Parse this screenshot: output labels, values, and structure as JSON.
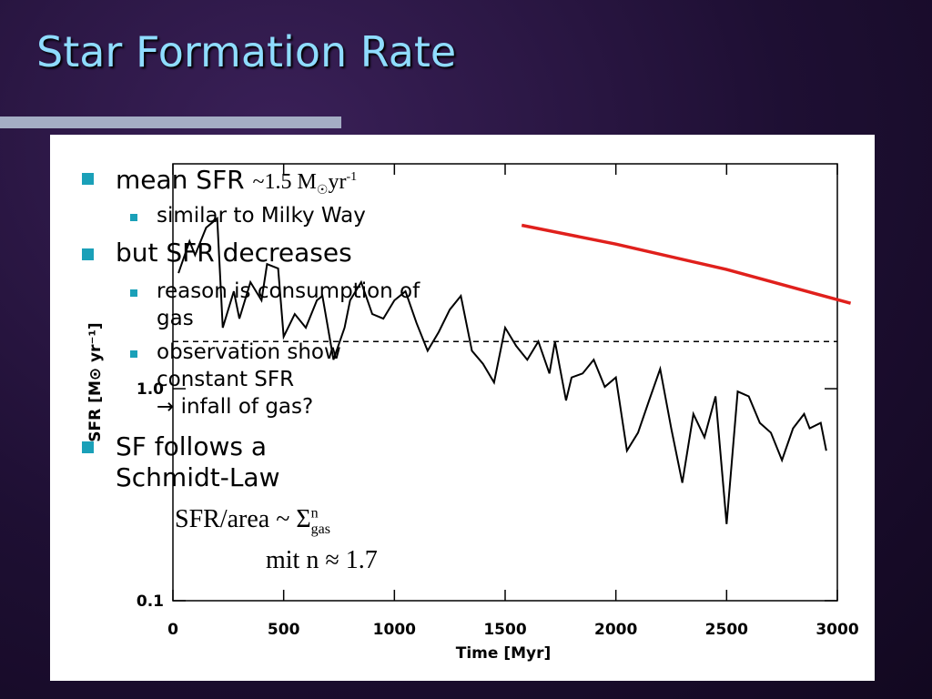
{
  "slide": {
    "title": "Star Formation Rate",
    "bullets": [
      {
        "parts": [
          "mean SFR",
          "~1.5 M",
          "☉",
          "yr",
          "-1"
        ]
      },
      {
        "text": "similar to Milky Way",
        "level": 2
      },
      {
        "text": "but SFR decreases",
        "level": 1
      },
      {
        "text": "reason is consumption of gas",
        "level": 2
      },
      {
        "text": "observation show constant SFR",
        "level": 2
      },
      {
        "text": "→ infall of gas?",
        "level": 3
      },
      {
        "text": "SF follows a Schmidt-Law",
        "level": 1
      }
    ],
    "formula": {
      "main": "SFR/area ~ Σ",
      "sup": "n",
      "sub": "gas",
      "note": "mit n ≈ 1.7"
    }
  },
  "chart_data": {
    "type": "line",
    "xlabel": "Time [Myr]",
    "ylabel": "SFR [M⊙ yr⁻¹]",
    "xlim": [
      0,
      3000
    ],
    "xticks": [
      0,
      500,
      1000,
      1500,
      2000,
      2500,
      3000
    ],
    "ylim": [
      0.1,
      11.5
    ],
    "yticks": [
      0.1,
      {
        "value": 1,
        "label": "1.0"
      }
    ],
    "log_y": true,
    "hline": {
      "value": 1.67,
      "style": "dashed",
      "color": "#000000"
    },
    "series": [
      {
        "color": "#000000",
        "x": [
          25,
          75,
          100,
          150,
          200,
          225,
          275,
          300,
          350,
          400,
          425,
          475,
          500,
          550,
          600,
          650,
          675,
          725,
          775,
          800,
          850,
          900,
          950,
          1000,
          1050,
          1100,
          1150,
          1200,
          1250,
          1300,
          1350,
          1400,
          1450,
          1500,
          1550,
          1600,
          1650,
          1700,
          1725,
          1775,
          1800,
          1850,
          1900,
          1950,
          2000,
          2050,
          2100,
          2150,
          2200,
          2250,
          2300,
          2350,
          2400,
          2450,
          2500,
          2550,
          2600,
          2650,
          2700,
          2750,
          2800,
          2850,
          2875,
          2925,
          2950
        ],
        "values": [
          3.51,
          4.96,
          4.27,
          5.75,
          6.35,
          1.94,
          2.88,
          2.14,
          3.18,
          2.61,
          3.87,
          3.69,
          1.76,
          2.25,
          1.94,
          2.61,
          2.74,
          1.37,
          1.94,
          2.61,
          3.18,
          2.25,
          2.14,
          2.61,
          2.88,
          2.04,
          1.51,
          1.85,
          2.36,
          2.74,
          1.51,
          1.31,
          1.07,
          1.94,
          1.59,
          1.37,
          1.67,
          1.18,
          1.67,
          0.88,
          1.13,
          1.18,
          1.37,
          1.02,
          1.13,
          0.51,
          0.62,
          0.88,
          1.24,
          0.65,
          0.36,
          0.76,
          0.59,
          0.92,
          0.23,
          0.97,
          0.92,
          0.69,
          0.62,
          0.46,
          0.65,
          0.76,
          0.65,
          0.69,
          0.51
        ]
      },
      {
        "color": "#e0201c",
        "x": [
          1575,
          2000,
          2500,
          3060
        ],
        "values": [
          5.9,
          4.81,
          3.65,
          2.53
        ]
      }
    ]
  }
}
